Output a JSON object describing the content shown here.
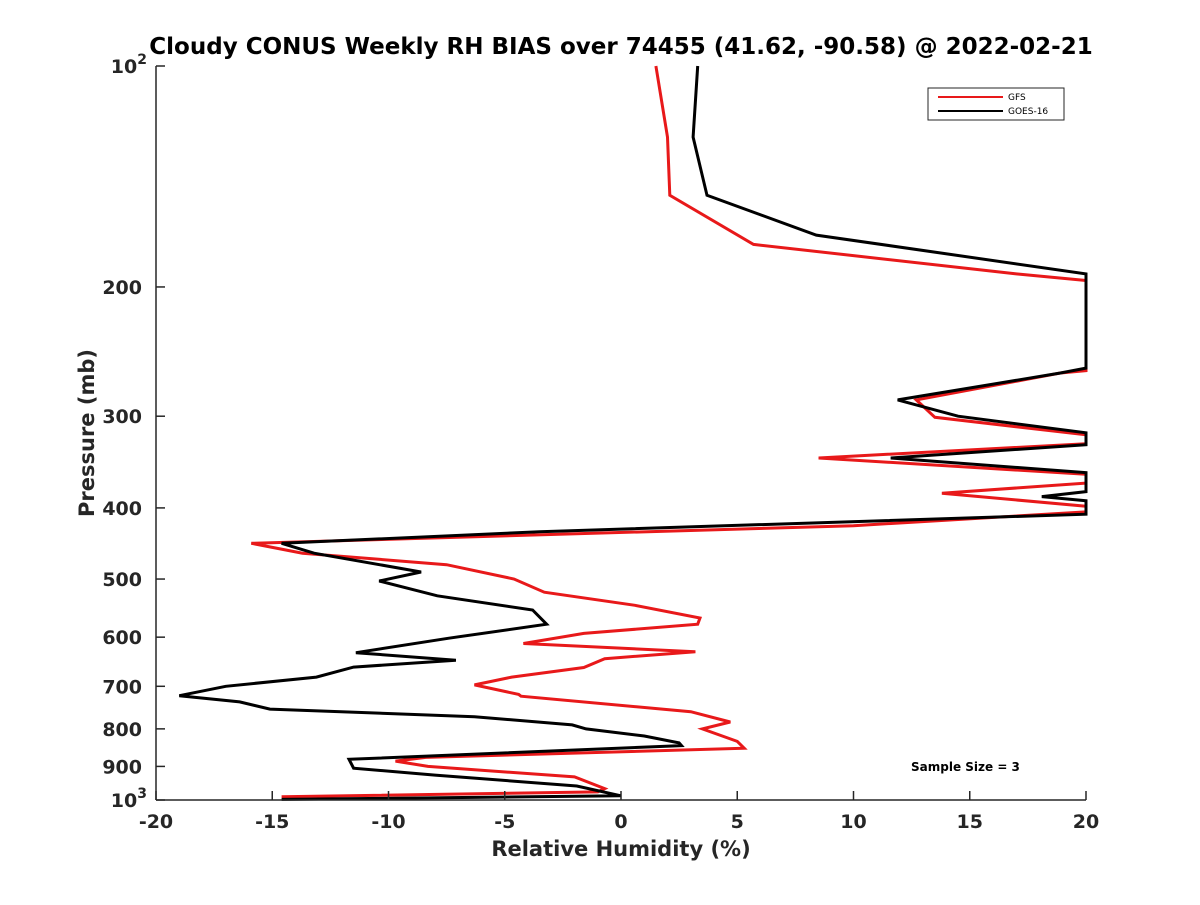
{
  "chart_data": {
    "type": "line",
    "title": "Cloudy CONUS Weekly RH BIAS over 74455 (41.62, -90.58) @ 2022-02-21",
    "xlabel": "Relative Humidity (%)",
    "ylabel": "Pressure (mb)",
    "xlim": [
      -20,
      20
    ],
    "ylim": [
      100,
      1000
    ],
    "yscale": "log",
    "y_reversed": true,
    "grid": false,
    "legend_position": "top-right",
    "annotation": "Sample Size = 3",
    "x_ticks": [
      {
        "value": -20,
        "label": "-20"
      },
      {
        "value": -15,
        "label": "-15"
      },
      {
        "value": -10,
        "label": "-10"
      },
      {
        "value": -5,
        "label": "-5"
      },
      {
        "value": 0,
        "label": "0"
      },
      {
        "value": 5,
        "label": "5"
      },
      {
        "value": 10,
        "label": "10"
      },
      {
        "value": 15,
        "label": "15"
      },
      {
        "value": 20,
        "label": "20"
      }
    ],
    "y_ticks": [
      {
        "value": 100,
        "label": "10",
        "sup": "2"
      },
      {
        "value": 200,
        "label": "200",
        "sup": ""
      },
      {
        "value": 300,
        "label": "300",
        "sup": ""
      },
      {
        "value": 400,
        "label": "400",
        "sup": ""
      },
      {
        "value": 500,
        "label": "500",
        "sup": ""
      },
      {
        "value": 600,
        "label": "600",
        "sup": ""
      },
      {
        "value": 700,
        "label": "700",
        "sup": ""
      },
      {
        "value": 800,
        "label": "800",
        "sup": ""
      },
      {
        "value": 900,
        "label": "900",
        "sup": ""
      },
      {
        "value": 1000,
        "label": "10",
        "sup": "3"
      }
    ],
    "series": [
      {
        "name": "GFS",
        "color": "#e8191a",
        "points": [
          [
            1.5,
            100
          ],
          [
            2.0,
            125
          ],
          [
            2.1,
            150
          ],
          [
            5.7,
            175
          ],
          [
            17,
            192
          ],
          [
            20,
            196
          ],
          [
            20,
            260
          ],
          [
            18.9,
            262
          ],
          [
            12.7,
            285
          ],
          [
            13.5,
            301
          ],
          [
            20,
            318
          ],
          [
            20,
            327
          ],
          [
            8.5,
            342
          ],
          [
            20,
            360
          ],
          [
            20,
            370
          ],
          [
            13.8,
            382
          ],
          [
            20,
            398
          ],
          [
            20,
            405
          ],
          [
            10,
            423
          ],
          [
            -15.9,
            447
          ],
          [
            -13.7,
            461
          ],
          [
            -7.5,
            478
          ],
          [
            -4.6,
            500
          ],
          [
            -3.3,
            521
          ],
          [
            0.6,
            543
          ],
          [
            3.4,
            565
          ],
          [
            3.3,
            576
          ],
          [
            -1.6,
            593
          ],
          [
            -4.2,
            612
          ],
          [
            3.2,
            628
          ],
          [
            -0.7,
            642
          ],
          [
            -1.6,
            660
          ],
          [
            -4.7,
            680
          ],
          [
            -6.3,
            697
          ],
          [
            -4.4,
            718
          ],
          [
            -4.3,
            722
          ],
          [
            3.0,
            758
          ],
          [
            4.7,
            783
          ],
          [
            3.5,
            800
          ],
          [
            5.0,
            832
          ],
          [
            5.3,
            850
          ],
          [
            -8.4,
            875
          ],
          [
            -9.7,
            885
          ],
          [
            -8.3,
            900
          ],
          [
            -2.0,
            930
          ],
          [
            -0.7,
            965
          ],
          [
            -1.0,
            975
          ],
          [
            -14.6,
            990
          ]
        ]
      },
      {
        "name": "GOES-16",
        "color": "#000000",
        "points": [
          [
            3.3,
            100
          ],
          [
            3.1,
            125
          ],
          [
            3.7,
            150
          ],
          [
            8.4,
            170
          ],
          [
            20,
            192
          ],
          [
            20,
            258
          ],
          [
            18.9,
            262
          ],
          [
            11.9,
            285
          ],
          [
            14.5,
            300
          ],
          [
            20,
            316
          ],
          [
            20,
            328
          ],
          [
            11.6,
            342
          ],
          [
            20,
            358
          ],
          [
            20,
            380
          ],
          [
            18.1,
            386
          ],
          [
            20,
            391
          ],
          [
            20,
            408
          ],
          [
            -3.5,
            431
          ],
          [
            -14.6,
            447
          ],
          [
            -13.2,
            461
          ],
          [
            -8.6,
            489
          ],
          [
            -10.4,
            503
          ],
          [
            -7.9,
            527
          ],
          [
            -3.8,
            551
          ],
          [
            -3.2,
            576
          ],
          [
            -7.4,
            602
          ],
          [
            -11.4,
            630
          ],
          [
            -7.1,
            645
          ],
          [
            -11.5,
            659
          ],
          [
            -13.1,
            680
          ],
          [
            -17,
            700
          ],
          [
            -19,
            721
          ],
          [
            -16.4,
            735
          ],
          [
            -15.1,
            752
          ],
          [
            -6.3,
            770
          ],
          [
            -2.1,
            790
          ],
          [
            -1.5,
            800
          ],
          [
            1.0,
            818
          ],
          [
            2.5,
            836
          ],
          [
            2.6,
            843
          ],
          [
            -11.7,
            880
          ],
          [
            -11.5,
            905
          ],
          [
            -8.0,
            925
          ],
          [
            -1.9,
            957
          ],
          [
            0.0,
            987
          ],
          [
            -14.6,
            998
          ]
        ]
      }
    ]
  }
}
